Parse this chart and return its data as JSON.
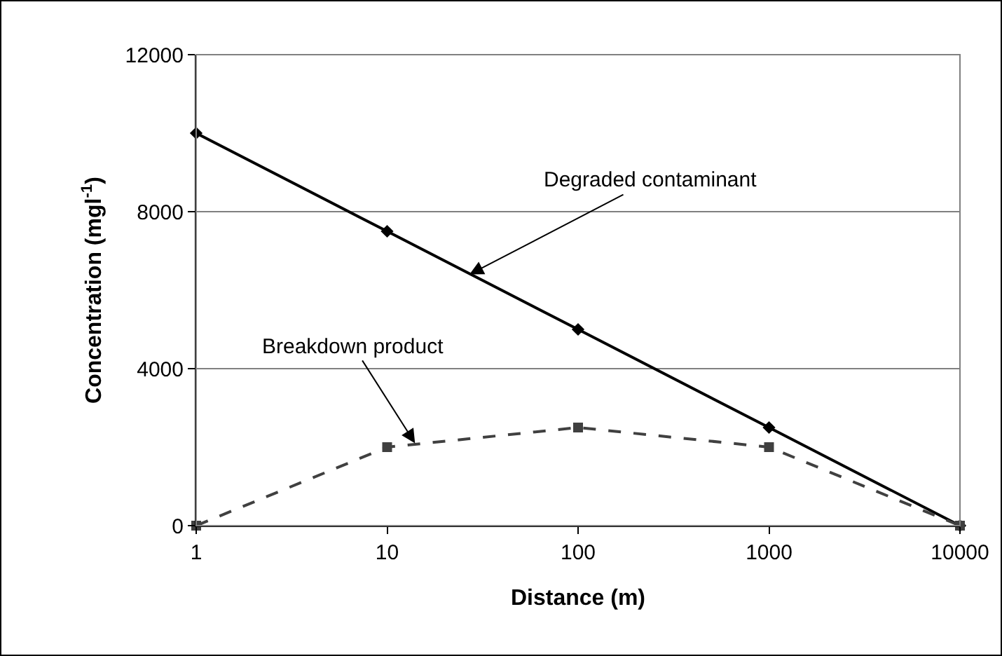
{
  "chart_data": {
    "type": "line",
    "x": [
      1,
      10,
      100,
      1000,
      10000
    ],
    "series": [
      {
        "color": "#000000",
        "values": [
          10000,
          7500,
          5000,
          2500,
          0
        ],
        "marker": "diamond",
        "line_style": "solid"
      },
      {
        "color": "#404040",
        "values": [
          0,
          2000,
          2500,
          2000,
          0
        ],
        "marker": "square",
        "line_style": "dashed"
      }
    ],
    "xlabel": "Distance (m)",
    "ylabel": "Concentration (mgl$^{-1}$)",
    "log": "x",
    "xlim": [
      1,
      10000
    ],
    "xticks": [
      1,
      10,
      100,
      1000,
      10000
    ],
    "ylim": [
      0,
      12000
    ],
    "yticks": [
      0,
      4000,
      8000,
      12000
    ],
    "grid": "y",
    "annotations": [
      {
        "text": "Degraded contaminant",
        "x": 27,
        "y": 6400
      },
      {
        "text": "Breakdown product",
        "x": 14,
        "y": 2100
      }
    ]
  }
}
